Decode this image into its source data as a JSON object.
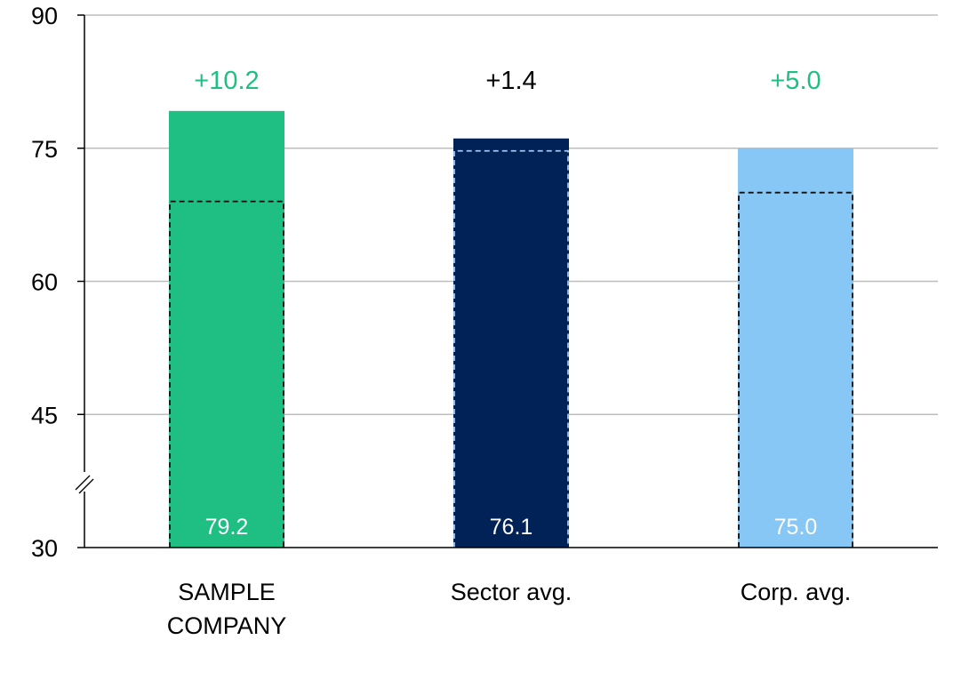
{
  "chart_data": {
    "type": "bar",
    "categories": [
      "SAMPLE COMPANY",
      "Sector avg.",
      "Corp. avg."
    ],
    "category_label_lines": [
      [
        "SAMPLE",
        "COMPANY"
      ],
      [
        "Sector avg."
      ],
      [
        "Corp. avg."
      ]
    ],
    "values": [
      79.2,
      76.1,
      75.0
    ],
    "value_labels": [
      "79.2",
      "76.1",
      "75.0"
    ],
    "previous_values": [
      69.0,
      74.7,
      70.0
    ],
    "change_labels": [
      "+10.2",
      "+1.4",
      "+5.0"
    ],
    "change_colors": [
      "#1fbf83",
      "#000000",
      "#1fbf83"
    ],
    "bar_colors": [
      "#1fbf83",
      "#002257",
      "#86c7f5"
    ],
    "previous_outline_colors": [
      "#111111",
      "#9fc8f0",
      "#111111"
    ],
    "ylim": [
      30,
      90
    ],
    "yticks": [
      30,
      45,
      60,
      75,
      90
    ],
    "ytick_labels": [
      "30",
      "45",
      "60",
      "75",
      "90"
    ],
    "axis_break": true,
    "grid": true,
    "title": "",
    "xlabel": "",
    "ylabel": ""
  }
}
